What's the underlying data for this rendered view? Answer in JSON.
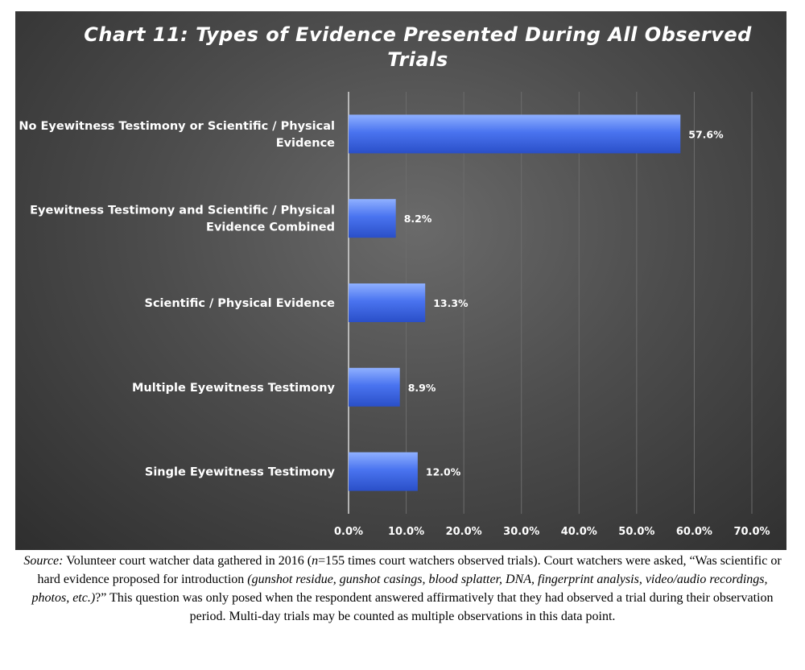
{
  "chart_data": {
    "type": "bar",
    "orientation": "horizontal",
    "title": "Chart 11: Types of Evidence Presented During All Observed Trials",
    "categories": [
      "No Eyewitness Testimony or Scientific / Physical Evidence",
      "Eyewitness Testimony and Scientific / Physical Evidence Combined",
      "Scientific / Physical Evidence",
      "Multiple Eyewitness Testimony",
      "Single Eyewitness Testimony"
    ],
    "category_lines": [
      [
        "No Eyewitness Testimony or Scientific / Physical",
        "Evidence"
      ],
      [
        "Eyewitness Testimony and Scientific / Physical",
        "Evidence Combined"
      ],
      [
        "Scientific / Physical Evidence"
      ],
      [
        "Multiple Eyewitness Testimony"
      ],
      [
        "Single Eyewitness Testimony"
      ]
    ],
    "values": [
      57.6,
      8.2,
      13.3,
      8.9,
      12.0
    ],
    "value_labels": [
      "57.6%",
      "8.2%",
      "13.3%",
      "8.9%",
      "12.0%"
    ],
    "xlim": [
      0,
      70
    ],
    "xticks": [
      0,
      10,
      20,
      30,
      40,
      50,
      60,
      70
    ],
    "xtick_labels": [
      "0.0%",
      "10.0%",
      "20.0%",
      "30.0%",
      "40.0%",
      "50.0%",
      "60.0%",
      "70.0%"
    ],
    "grid": "vertical",
    "legend": "none",
    "colors": {
      "bar_top": "#8fb0ff",
      "bar_mid": "#4a74f0",
      "bar_bottom": "#2a4fc8",
      "background_center": "#6a6a6a",
      "background_edge": "#2e2e2e",
      "gridline": "#6c6c6c",
      "axis": "#d8d8d8",
      "text": "#ffffff"
    }
  },
  "source_note": {
    "label": "Source:",
    "text_1": " Volunteer court watcher data gathered in 2016 (",
    "n_label": "n",
    "text_2": "=155 times court watchers observed trials). Court watchers were asked, “Was scientific or hard evidence proposed for introduction ",
    "examples": "(gunshot residue, gunshot casings, blood splatter, DNA, fingerprint analysis, video/audio recordings, photos, etc.)",
    "text_3": "?” This question was only posed when the respondent answered affirmatively that they had observed a trial during their observation period. Multi-day trials may be counted as multiple observations in this data point."
  }
}
